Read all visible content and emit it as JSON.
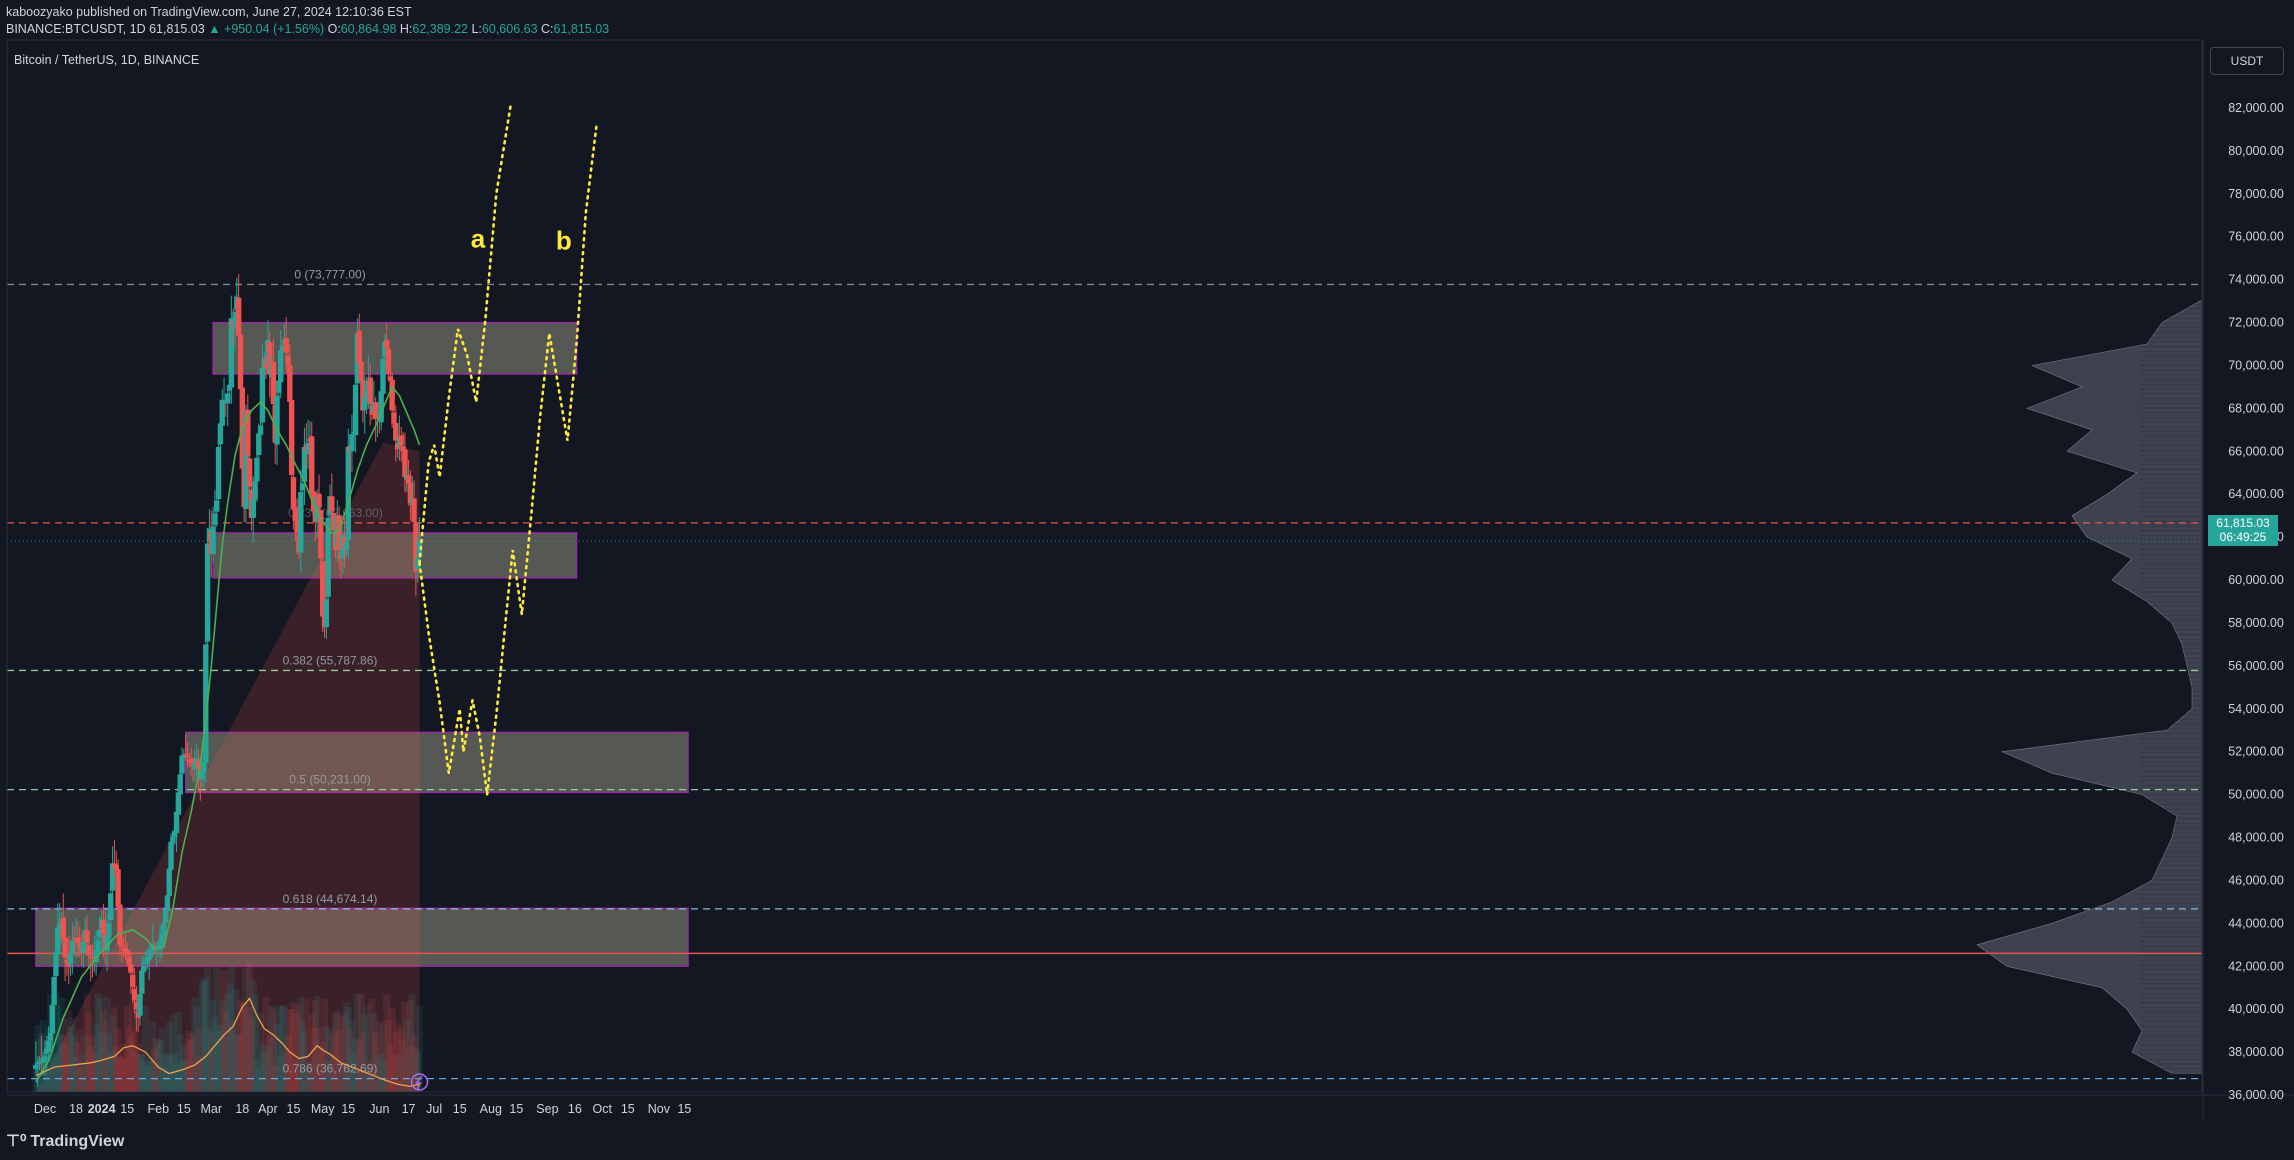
{
  "header": {
    "publish_line": "kaboozyako published on TradingView.com, June 27, 2024 12:10:36 EST",
    "symbol": "BINANCE:BTCUSDT, 1D",
    "last": "61,815.03",
    "change": "▲ +950.04 (+1.56%)",
    "o_label": "O:",
    "o": "60,864.98",
    "h_label": "H:",
    "h": "62,389.22",
    "l_label": "L:",
    "l": "60,606.63",
    "c_label": "C:",
    "c": "61,815.03",
    "pane_title": "Bitcoin / TetherUS, 1D, BINANCE",
    "currency_button": "USDT",
    "brand": "TradingView"
  },
  "price_label": {
    "value": "61,815.03",
    "countdown": "06:49:25"
  },
  "colors": {
    "background": "#131722",
    "bull": "#26a69a",
    "bear": "#ef5350",
    "ma": "#4caf50",
    "volume_ma": "#f0a04b",
    "projection": "#ffeb3b",
    "zone_fill": "#b2b29a",
    "zone_border": "#9c27b0"
  },
  "chart_data": {
    "type": "candlestick",
    "ylim": [
      34800,
      84000
    ],
    "y_ticks": [
      "36,000.00",
      "38,000.00",
      "40,000.00",
      "42,000.00",
      "44,000.00",
      "46,000.00",
      "48,000.00",
      "50,000.00",
      "52,000.00",
      "54,000.00",
      "56,000.00",
      "58,000.00",
      "60,000.00",
      "62,000.00",
      "64,000.00",
      "66,000.00",
      "68,000.00",
      "70,000.00",
      "72,000.00",
      "74,000.00",
      "76,000.00",
      "78,000.00",
      "80,000.00",
      "82,000.00"
    ],
    "x_ticks": [
      {
        "label": "Dec",
        "day": 0,
        "bold": false
      },
      {
        "label": "18",
        "day": 17,
        "bold": false
      },
      {
        "label": "2024",
        "day": 31,
        "bold": true
      },
      {
        "label": "15",
        "day": 45,
        "bold": false
      },
      {
        "label": "Feb",
        "day": 62,
        "bold": false
      },
      {
        "label": "15",
        "day": 76,
        "bold": false
      },
      {
        "label": "Mar",
        "day": 91,
        "bold": false
      },
      {
        "label": "18",
        "day": 108,
        "bold": false
      },
      {
        "label": "Apr",
        "day": 122,
        "bold": false
      },
      {
        "label": "15",
        "day": 136,
        "bold": false
      },
      {
        "label": "May",
        "day": 152,
        "bold": false
      },
      {
        "label": "15",
        "day": 166,
        "bold": false
      },
      {
        "label": "Jun",
        "day": 183,
        "bold": false
      },
      {
        "label": "17",
        "day": 199,
        "bold": false
      },
      {
        "label": "Jul",
        "day": 213,
        "bold": false
      },
      {
        "label": "15",
        "day": 227,
        "bold": false
      },
      {
        "label": "Aug",
        "day": 244,
        "bold": false
      },
      {
        "label": "15",
        "day": 258,
        "bold": false
      },
      {
        "label": "Sep",
        "day": 275,
        "bold": false
      },
      {
        "label": "16",
        "day": 290,
        "bold": false
      },
      {
        "label": "Oct",
        "day": 305,
        "bold": false
      },
      {
        "label": "15",
        "day": 319,
        "bold": false
      },
      {
        "label": "Nov",
        "day": 336,
        "bold": false
      },
      {
        "label": "15",
        "day": 350,
        "bold": false
      }
    ],
    "close_anchors": [
      [
        -5,
        37400
      ],
      [
        0,
        37800
      ],
      [
        3,
        38900
      ],
      [
        5,
        41500
      ],
      [
        7,
        43800
      ],
      [
        9,
        44100
      ],
      [
        11,
        42400
      ],
      [
        13,
        42000
      ],
      [
        15,
        43200
      ],
      [
        17,
        43300
      ],
      [
        20,
        42600
      ],
      [
        22,
        43700
      ],
      [
        24,
        42500
      ],
      [
        27,
        42300
      ],
      [
        29,
        43200
      ],
      [
        31,
        44200
      ],
      [
        33,
        42800
      ],
      [
        35,
        44000
      ],
      [
        37,
        46800
      ],
      [
        39,
        46500
      ],
      [
        41,
        43000
      ],
      [
        43,
        42800
      ],
      [
        45,
        42500
      ],
      [
        47,
        41700
      ],
      [
        49,
        40400
      ],
      [
        51,
        39600
      ],
      [
        53,
        41800
      ],
      [
        55,
        42200
      ],
      [
        57,
        42600
      ],
      [
        59,
        43000
      ],
      [
        61,
        42800
      ],
      [
        63,
        43100
      ],
      [
        65,
        44000
      ],
      [
        67,
        45300
      ],
      [
        69,
        47800
      ],
      [
        71,
        48300
      ],
      [
        73,
        50100
      ],
      [
        75,
        51800
      ],
      [
        77,
        51900
      ],
      [
        79,
        51600
      ],
      [
        81,
        51300
      ],
      [
        83,
        51700
      ],
      [
        85,
        50700
      ],
      [
        87,
        51500
      ],
      [
        88,
        57000
      ],
      [
        89,
        61700
      ],
      [
        90,
        62400
      ],
      [
        91,
        61200
      ],
      [
        92,
        62500
      ],
      [
        94,
        63700
      ],
      [
        95,
        66200
      ],
      [
        97,
        68400
      ],
      [
        99,
        68300
      ],
      [
        101,
        69100
      ],
      [
        102,
        72200
      ],
      [
        103,
        71800
      ],
      [
        105,
        73200
      ],
      [
        106,
        71400
      ],
      [
        107,
        68900
      ],
      [
        108,
        65200
      ],
      [
        109,
        63400
      ],
      [
        110,
        67900
      ],
      [
        111,
        65800
      ],
      [
        113,
        62900
      ],
      [
        115,
        64600
      ],
      [
        117,
        66800
      ],
      [
        118,
        67200
      ],
      [
        119,
        69900
      ],
      [
        120,
        70300
      ],
      [
        121,
        69900
      ],
      [
        122,
        71200
      ],
      [
        123,
        69600
      ],
      [
        124,
        70100
      ],
      [
        125,
        68200
      ],
      [
        126,
        66400
      ],
      [
        127,
        68600
      ],
      [
        128,
        69300
      ],
      [
        129,
        70700
      ],
      [
        131,
        71200
      ],
      [
        132,
        70600
      ],
      [
        133,
        70000
      ],
      [
        134,
        68300
      ],
      [
        135,
        64900
      ],
      [
        136,
        63300
      ],
      [
        138,
        62200
      ],
      [
        139,
        61300
      ],
      [
        140,
        64100
      ],
      [
        141,
        64500
      ],
      [
        142,
        66200
      ],
      [
        143,
        66000
      ],
      [
        144,
        66400
      ],
      [
        145,
        66600
      ],
      [
        146,
        64000
      ],
      [
        147,
        63200
      ],
      [
        148,
        62700
      ],
      [
        149,
        63900
      ],
      [
        150,
        63400
      ],
      [
        151,
        61000
      ],
      [
        152,
        58300
      ],
      [
        153,
        57800
      ],
      [
        154,
        59100
      ],
      [
        155,
        62900
      ],
      [
        156,
        63900
      ],
      [
        157,
        63200
      ],
      [
        158,
        62300
      ],
      [
        159,
        61400
      ],
      [
        160,
        63000
      ],
      [
        161,
        61400
      ],
      [
        162,
        61000
      ],
      [
        163,
        62100
      ],
      [
        164,
        61400
      ],
      [
        165,
        61800
      ],
      [
        166,
        66200
      ],
      [
        167,
        66000
      ],
      [
        168,
        66800
      ],
      [
        169,
        66900
      ],
      [
        170,
        69100
      ],
      [
        171,
        71500
      ],
      [
        172,
        70100
      ],
      [
        173,
        69300
      ],
      [
        174,
        67900
      ],
      [
        175,
        68500
      ],
      [
        176,
        68900
      ],
      [
        177,
        69300
      ],
      [
        178,
        68200
      ],
      [
        179,
        67700
      ],
      [
        180,
        68300
      ],
      [
        181,
        67500
      ],
      [
        182,
        67600
      ],
      [
        183,
        67500
      ],
      [
        184,
        68800
      ],
      [
        185,
        70300
      ],
      [
        186,
        71100
      ],
      [
        187,
        70800
      ],
      [
        188,
        69600
      ],
      [
        189,
        69300
      ],
      [
        190,
        67900
      ],
      [
        191,
        67300
      ],
      [
        192,
        66500
      ],
      [
        193,
        66100
      ],
      [
        194,
        66700
      ],
      [
        195,
        66300
      ],
      [
        196,
        66000
      ],
      [
        197,
        64800
      ],
      [
        198,
        64900
      ],
      [
        199,
        64500
      ],
      [
        200,
        63600
      ],
      [
        201,
        63800
      ],
      [
        202,
        62700
      ],
      [
        203,
        60400
      ],
      [
        204,
        61000
      ],
      [
        205,
        61815
      ]
    ],
    "ma": [
      [
        -5,
        36600
      ],
      [
        2,
        37600
      ],
      [
        10,
        39600
      ],
      [
        20,
        41500
      ],
      [
        30,
        42600
      ],
      [
        40,
        43500
      ],
      [
        48,
        43700
      ],
      [
        55,
        43300
      ],
      [
        60,
        42800
      ],
      [
        65,
        42900
      ],
      [
        70,
        44700
      ],
      [
        75,
        47300
      ],
      [
        80,
        49200
      ],
      [
        85,
        51400
      ],
      [
        88,
        53500
      ],
      [
        91,
        56000
      ],
      [
        94,
        58800
      ],
      [
        97,
        61600
      ],
      [
        100,
        63600
      ],
      [
        104,
        65800
      ],
      [
        108,
        67100
      ],
      [
        113,
        67900
      ],
      [
        118,
        68300
      ],
      [
        122,
        67900
      ],
      [
        127,
        67000
      ],
      [
        132,
        66300
      ],
      [
        137,
        65400
      ],
      [
        142,
        64600
      ],
      [
        147,
        63500
      ],
      [
        152,
        62700
      ],
      [
        157,
        62200
      ],
      [
        161,
        62300
      ],
      [
        166,
        63600
      ],
      [
        171,
        65100
      ],
      [
        176,
        66300
      ],
      [
        181,
        67200
      ],
      [
        186,
        68200
      ],
      [
        190,
        69000
      ],
      [
        194,
        68600
      ],
      [
        198,
        67800
      ],
      [
        202,
        67000
      ],
      [
        205,
        66300
      ]
    ],
    "volume_ma": [
      [
        -5,
        36900
      ],
      [
        5,
        37300
      ],
      [
        15,
        37400
      ],
      [
        25,
        37500
      ],
      [
        30,
        37600
      ],
      [
        38,
        37800
      ],
      [
        43,
        38200
      ],
      [
        48,
        38300
      ],
      [
        55,
        38000
      ],
      [
        62,
        37300
      ],
      [
        68,
        37000
      ],
      [
        76,
        37200
      ],
      [
        82,
        37400
      ],
      [
        88,
        37800
      ],
      [
        93,
        38300
      ],
      [
        98,
        38800
      ],
      [
        103,
        39200
      ],
      [
        108,
        40100
      ],
      [
        112,
        40500
      ],
      [
        116,
        39700
      ],
      [
        120,
        39100
      ],
      [
        125,
        38800
      ],
      [
        130,
        38400
      ],
      [
        134,
        38000
      ],
      [
        139,
        37700
      ],
      [
        144,
        37800
      ],
      [
        149,
        38300
      ],
      [
        152,
        38100
      ],
      [
        156,
        37900
      ],
      [
        162,
        37500
      ],
      [
        168,
        37300
      ],
      [
        174,
        37100
      ],
      [
        180,
        36900
      ],
      [
        186,
        36700
      ],
      [
        193,
        36500
      ],
      [
        200,
        36400
      ],
      [
        205,
        36500
      ]
    ],
    "zones": [
      {
        "x0": 92,
        "x1": 291,
        "y0": 69600,
        "y1": 72000
      },
      {
        "x0": 92,
        "x1": 291,
        "y0": 60100,
        "y1": 62200
      },
      {
        "x0": 77,
        "x1": 352,
        "y0": 50100,
        "y1": 52900
      },
      {
        "x0": -5,
        "x1": 352,
        "y0": 42000,
        "y1": 44700
      }
    ],
    "fib_levels": [
      {
        "label": "0 (73,777.00)",
        "price": 73777,
        "color": "#8d8f96",
        "label_day": 156
      },
      {
        "label": "0.382 (55,787.86)",
        "price": 55787,
        "color": "#a5d6a7",
        "label_day": 156
      },
      {
        "label": "0.5 (50,231.00)",
        "price": 50231,
        "color": "#a5d6a7",
        "label_day": 156
      },
      {
        "label": "0.618 (44,674.14)",
        "price": 44674,
        "color": "#90caf9",
        "label_day": 156
      },
      {
        "label": "0.786 (36,762.69)",
        "price": 36762,
        "color": "#64b5f6",
        "label_day": 156
      }
    ],
    "hidden_label": {
      "label": "0.236 (62,663.00)",
      "price": 62663,
      "day": 159
    },
    "red_dash_price": 62663,
    "support_line_price": 42600,
    "projection_a": [
      [
        205,
        60800
      ],
      [
        210,
        65500
      ],
      [
        213,
        66300
      ],
      [
        216,
        64800
      ],
      [
        221,
        68500
      ],
      [
        226,
        71700
      ],
      [
        231,
        70500
      ],
      [
        236,
        68300
      ],
      [
        241,
        72100
      ],
      [
        247,
        78000
      ],
      [
        255,
        82200
      ]
    ],
    "projection_b": [
      [
        205,
        60800
      ],
      [
        210,
        57500
      ],
      [
        216,
        54300
      ],
      [
        221,
        51000
      ],
      [
        227,
        54000
      ],
      [
        229,
        52000
      ],
      [
        234,
        54400
      ],
      [
        238,
        52700
      ],
      [
        242,
        50000
      ],
      [
        247,
        53700
      ],
      [
        252,
        58000
      ],
      [
        256,
        61400
      ],
      [
        261,
        58400
      ],
      [
        266,
        62900
      ],
      [
        271,
        67600
      ],
      [
        276,
        71500
      ],
      [
        281,
        69000
      ],
      [
        286,
        66500
      ],
      [
        291,
        71100
      ],
      [
        296,
        77100
      ],
      [
        302,
        81300
      ]
    ],
    "labels": [
      {
        "text": "a",
        "day": 237,
        "price": 75500
      },
      {
        "text": "b",
        "day": 284,
        "price": 75400
      }
    ],
    "profile": [
      [
        73000,
        2
      ],
      [
        72000,
        40
      ],
      [
        71000,
        55
      ],
      [
        70000,
        170
      ],
      [
        69000,
        120
      ],
      [
        68000,
        175
      ],
      [
        67000,
        110
      ],
      [
        66000,
        135
      ],
      [
        65000,
        65
      ],
      [
        64000,
        95
      ],
      [
        63000,
        130
      ],
      [
        62000,
        115
      ],
      [
        61000,
        70
      ],
      [
        60000,
        90
      ],
      [
        59000,
        55
      ],
      [
        58000,
        30
      ],
      [
        57000,
        20
      ],
      [
        56000,
        15
      ],
      [
        55000,
        10
      ],
      [
        54000,
        10
      ],
      [
        53000,
        35
      ],
      [
        52000,
        200
      ],
      [
        51000,
        150
      ],
      [
        50000,
        60
      ],
      [
        49000,
        25
      ],
      [
        48000,
        30
      ],
      [
        47000,
        40
      ],
      [
        46000,
        50
      ],
      [
        45000,
        90
      ],
      [
        44000,
        150
      ],
      [
        43000,
        225
      ],
      [
        42000,
        195
      ],
      [
        41000,
        100
      ],
      [
        40000,
        75
      ],
      [
        39000,
        60
      ],
      [
        38000,
        70
      ],
      [
        37000,
        30
      ]
    ]
  }
}
